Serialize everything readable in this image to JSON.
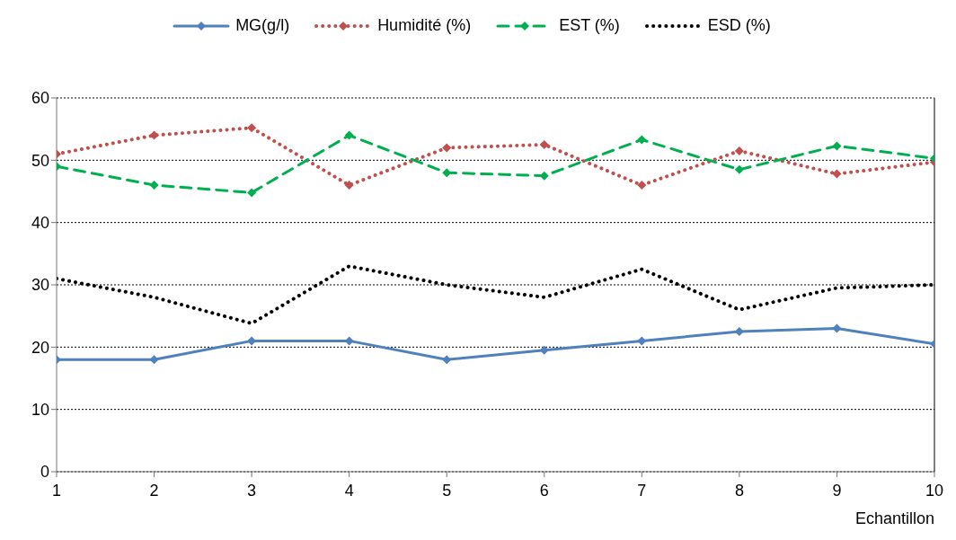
{
  "chart_data": {
    "type": "line",
    "xlabel": "Echantillon",
    "x": [
      1,
      2,
      3,
      4,
      5,
      6,
      7,
      8,
      9,
      10
    ],
    "xlim": [
      1,
      10
    ],
    "xticks": [
      1,
      2,
      3,
      4,
      5,
      6,
      7,
      8,
      9,
      10
    ],
    "ylim": [
      0,
      60
    ],
    "yticks": [
      0,
      10,
      20,
      30,
      40,
      50,
      60
    ],
    "grid": "y",
    "legend": "top",
    "series": [
      {
        "name": "MG(g/l)",
        "color": "#4f81bd",
        "marker": "diamond",
        "line_style": "solid",
        "values": [
          18,
          18,
          21,
          21,
          18,
          19.5,
          21,
          22.5,
          23,
          20.5
        ]
      },
      {
        "name": "Humidité (%)",
        "color": "#c0504d",
        "marker": "diamond",
        "line_style": "dotted",
        "values": [
          51,
          54,
          55.2,
          46,
          52,
          52.5,
          46,
          51.5,
          47.8,
          49.7
        ]
      },
      {
        "name": "EST (%)",
        "color": "#00b050",
        "marker": "diamond",
        "line_style": "dashed",
        "values": [
          49,
          46,
          44.8,
          54,
          48,
          47.5,
          53.3,
          48.5,
          52.3,
          50.3
        ]
      },
      {
        "name": "ESD (%)",
        "color": "#000000",
        "marker": "none",
        "line_style": "dotted",
        "values": [
          31,
          28,
          23.8,
          33,
          30,
          28,
          32.5,
          26,
          29.5,
          30
        ]
      }
    ]
  }
}
